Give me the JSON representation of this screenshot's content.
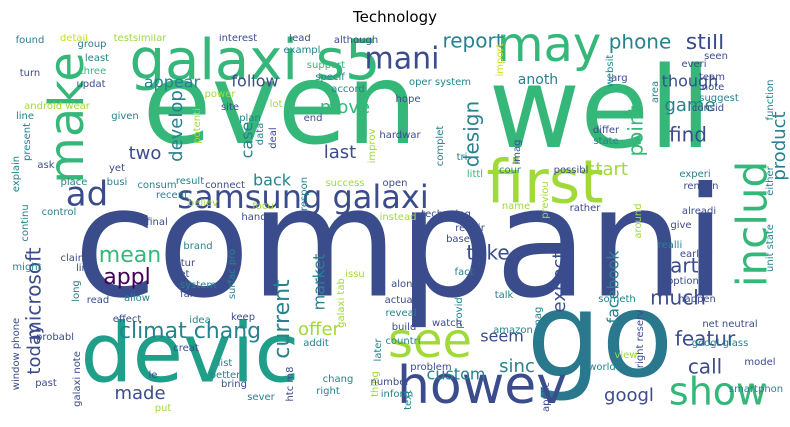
{
  "title": "Technology",
  "palette": {
    "navy": "#3b4c8c",
    "blue": "#3d5d92",
    "teal": "#26828e",
    "teal_dark": "#2a788e",
    "green": "#35b779",
    "green_light": "#5ec962",
    "lime": "#a0da39",
    "yellow_green": "#c8e020",
    "purple": "#472d7b",
    "dark_purple": "#440154",
    "sea": "#1f9e89"
  },
  "words": [
    {
      "text": "compani",
      "color": "navy"
    },
    {
      "text": "even",
      "color": "green"
    },
    {
      "text": "well",
      "color": "green"
    },
    {
      "text": "go",
      "color": "teal_dark"
    },
    {
      "text": "devic",
      "color": "sea"
    },
    {
      "text": "first",
      "color": "lime"
    },
    {
      "text": "galaxi s5",
      "color": "green"
    },
    {
      "text": "howev",
      "color": "navy"
    },
    {
      "text": "make",
      "color": "green"
    },
    {
      "text": "may",
      "color": "green"
    },
    {
      "text": "see",
      "color": "lime"
    },
    {
      "text": "samsung galaxi",
      "color": "navy"
    },
    {
      "text": "show",
      "color": "green"
    },
    {
      "text": "includ",
      "color": "green"
    },
    {
      "text": "mani",
      "color": "navy"
    },
    {
      "text": "ad",
      "color": "navy"
    },
    {
      "text": "report",
      "color": "teal"
    },
    {
      "text": "phone",
      "color": "teal"
    },
    {
      "text": "still",
      "color": "navy"
    },
    {
      "text": "move",
      "color": "green"
    },
    {
      "text": "microsoft",
      "color": "navy"
    },
    {
      "text": "develop",
      "color": "teal"
    },
    {
      "text": "design",
      "color": "teal"
    },
    {
      "text": "point",
      "color": "green"
    },
    {
      "text": "product",
      "color": "teal"
    },
    {
      "text": "game",
      "color": "teal"
    },
    {
      "text": "find",
      "color": "navy"
    },
    {
      "text": "start",
      "color": "lime"
    },
    {
      "text": "appear",
      "color": "teal"
    },
    {
      "text": "follow",
      "color": "navy"
    },
    {
      "text": "anoth",
      "color": "teal"
    },
    {
      "text": "though",
      "color": "navy"
    },
    {
      "text": "two",
      "color": "navy"
    },
    {
      "text": "last",
      "color": "navy"
    },
    {
      "text": "case",
      "color": "teal"
    },
    {
      "text": "back",
      "color": "teal"
    },
    {
      "text": "mean",
      "color": "green"
    },
    {
      "text": "appl",
      "color": "dark_purple"
    },
    {
      "text": "take",
      "color": "navy"
    },
    {
      "text": "part",
      "color": "navy"
    },
    {
      "text": "today",
      "color": "navy"
    },
    {
      "text": "climat chang",
      "color": "teal"
    },
    {
      "text": "current",
      "color": "teal"
    },
    {
      "text": "offer",
      "color": "lime"
    },
    {
      "text": "market",
      "color": "teal"
    },
    {
      "text": "expect",
      "color": "navy"
    },
    {
      "text": "much",
      "color": "navy"
    },
    {
      "text": "featur",
      "color": "navy"
    },
    {
      "text": "facebook",
      "color": "teal"
    },
    {
      "text": "call",
      "color": "navy"
    },
    {
      "text": "seem",
      "color": "navy"
    },
    {
      "text": "sinc",
      "color": "teal"
    },
    {
      "text": "custom",
      "color": "teal"
    },
    {
      "text": "made",
      "color": "navy"
    },
    {
      "text": "googl",
      "color": "navy"
    },
    {
      "text": "found",
      "color": "teal"
    },
    {
      "text": "detail",
      "color": "yellow_green"
    },
    {
      "text": "testsimilar",
      "color": "lime"
    },
    {
      "text": "interest",
      "color": "navy"
    },
    {
      "text": "lead",
      "color": "navy"
    },
    {
      "text": "although",
      "color": "navy"
    },
    {
      "text": "exampl",
      "color": "teal"
    },
    {
      "text": "support",
      "color": "green"
    },
    {
      "text": "specif",
      "color": "teal"
    },
    {
      "text": "accord",
      "color": "teal"
    },
    {
      "text": "import",
      "color": "yellow_green"
    },
    {
      "text": "oper system",
      "color": "teal"
    },
    {
      "text": "larg",
      "color": "navy"
    },
    {
      "text": "everi",
      "color": "navy"
    },
    {
      "text": "seen",
      "color": "navy"
    },
    {
      "text": "team",
      "color": "navy"
    },
    {
      "text": "note",
      "color": "navy"
    },
    {
      "text": "group",
      "color": "teal"
    },
    {
      "text": "least",
      "color": "teal"
    },
    {
      "text": "three",
      "color": "green"
    },
    {
      "text": "turn",
      "color": "navy"
    },
    {
      "text": "updat",
      "color": "navy"
    },
    {
      "text": "android wear",
      "color": "lime"
    },
    {
      "text": "power",
      "color": "lime"
    },
    {
      "text": "site",
      "color": "navy"
    },
    {
      "text": "lot",
      "color": "lime"
    },
    {
      "text": "hope",
      "color": "navy"
    },
    {
      "text": "websit",
      "color": "teal"
    },
    {
      "text": "area",
      "color": "teal"
    },
    {
      "text": "line",
      "color": "teal"
    },
    {
      "text": "given",
      "color": "teal"
    },
    {
      "text": "potenti",
      "color": "lime"
    },
    {
      "text": "plan",
      "color": "teal"
    },
    {
      "text": "end",
      "color": "navy"
    },
    {
      "text": "improv",
      "color": "lime"
    },
    {
      "text": "suggest",
      "color": "teal"
    },
    {
      "text": "consid",
      "color": "navy"
    },
    {
      "text": "function",
      "color": "teal"
    },
    {
      "text": "present",
      "color": "teal"
    },
    {
      "text": "data",
      "color": "teal"
    },
    {
      "text": "deal",
      "color": "navy"
    },
    {
      "text": "hardwar",
      "color": "navy"
    },
    {
      "text": "complet",
      "color": "teal"
    },
    {
      "text": "differ",
      "color": "navy"
    },
    {
      "text": "state",
      "color": "teal"
    },
    {
      "text": "littl",
      "color": "green"
    },
    {
      "text": "imag",
      "color": "navy"
    },
    {
      "text": "cour",
      "color": "teal"
    },
    {
      "text": "explain",
      "color": "teal"
    },
    {
      "text": "result",
      "color": "teal"
    },
    {
      "text": "connect",
      "color": "navy"
    },
    {
      "text": "success",
      "color": "lime"
    },
    {
      "text": "open",
      "color": "navy"
    },
    {
      "text": "tri",
      "color": "teal"
    },
    {
      "text": "possibl",
      "color": "navy"
    },
    {
      "text": "experi",
      "color": "teal"
    },
    {
      "text": "remain",
      "color": "navy"
    },
    {
      "text": "either",
      "color": "teal"
    },
    {
      "text": "ask",
      "color": "navy"
    },
    {
      "text": "yet",
      "color": "navy"
    },
    {
      "text": "consum",
      "color": "teal"
    },
    {
      "text": "place",
      "color": "teal"
    },
    {
      "text": "busi",
      "color": "teal"
    },
    {
      "text": "recent",
      "color": "teal"
    },
    {
      "text": "believ",
      "color": "lime"
    },
    {
      "text": "focu",
      "color": "lime"
    },
    {
      "text": "respon",
      "color": "teal"
    },
    {
      "text": "instead",
      "color": "lime"
    },
    {
      "text": "technolog",
      "color": "navy"
    },
    {
      "text": "previou",
      "color": "lime"
    },
    {
      "text": "rather",
      "color": "navy"
    },
    {
      "text": "alreadi",
      "color": "navy"
    },
    {
      "text": "unit state",
      "color": "teal"
    },
    {
      "text": "control",
      "color": "teal"
    },
    {
      "text": "continu",
      "color": "teal"
    },
    {
      "text": "final",
      "color": "navy"
    },
    {
      "text": "hand",
      "color": "navy"
    },
    {
      "text": "requir",
      "color": "navy"
    },
    {
      "text": "name",
      "color": "lime"
    },
    {
      "text": "base",
      "color": "navy"
    },
    {
      "text": "fact",
      "color": "teal"
    },
    {
      "text": "around",
      "color": "lime"
    },
    {
      "text": "give",
      "color": "navy"
    },
    {
      "text": "realli",
      "color": "teal"
    },
    {
      "text": "earlier",
      "color": "navy"
    },
    {
      "text": "might",
      "color": "teal"
    },
    {
      "text": "brand",
      "color": "teal"
    },
    {
      "text": "futur",
      "color": "navy"
    },
    {
      "text": "let",
      "color": "navy"
    },
    {
      "text": "system",
      "color": "teal"
    },
    {
      "text": "surfac pro",
      "color": "teal"
    },
    {
      "text": "galaxi tab",
      "color": "lime"
    },
    {
      "text": "issu",
      "color": "lime"
    },
    {
      "text": "along",
      "color": "navy"
    },
    {
      "text": "actual",
      "color": "navy"
    },
    {
      "text": "reveal",
      "color": "teal"
    },
    {
      "text": "build",
      "color": "navy"
    },
    {
      "text": "provid",
      "color": "teal"
    },
    {
      "text": "talk",
      "color": "teal"
    },
    {
      "text": "someth",
      "color": "teal"
    },
    {
      "text": "option",
      "color": "navy"
    },
    {
      "text": "happen",
      "color": "navy"
    },
    {
      "text": "right reserv",
      "color": "navy"
    },
    {
      "text": "window phone",
      "color": "navy"
    },
    {
      "text": "claim",
      "color": "navy"
    },
    {
      "text": "limit",
      "color": "navy"
    },
    {
      "text": "long",
      "color": "teal"
    },
    {
      "text": "read",
      "color": "navy"
    },
    {
      "text": "allow",
      "color": "teal"
    },
    {
      "text": "far",
      "color": "navy"
    },
    {
      "text": "effect",
      "color": "navy"
    },
    {
      "text": "idea",
      "color": "teal"
    },
    {
      "text": "keep",
      "color": "navy"
    },
    {
      "text": "watch",
      "color": "navy"
    },
    {
      "text": "countri",
      "color": "teal"
    },
    {
      "text": "amazon",
      "color": "teal"
    },
    {
      "text": "manag",
      "color": "teal"
    },
    {
      "text": "net neutral",
      "color": "navy"
    },
    {
      "text": "probabl",
      "color": "navy"
    },
    {
      "text": "creat",
      "color": "navy"
    },
    {
      "text": "addit",
      "color": "teal"
    },
    {
      "text": "later",
      "color": "teal"
    },
    {
      "text": "googl glass",
      "color": "teal"
    },
    {
      "text": "galaxi note",
      "color": "navy"
    },
    {
      "text": "list",
      "color": "teal"
    },
    {
      "text": "better",
      "color": "teal"
    },
    {
      "text": "le",
      "color": "navy"
    },
    {
      "text": "bring",
      "color": "navy"
    },
    {
      "text": "sever",
      "color": "teal"
    },
    {
      "text": "htc m8",
      "color": "navy"
    },
    {
      "text": "chang",
      "color": "teal"
    },
    {
      "text": "right",
      "color": "teal"
    },
    {
      "text": "thing",
      "color": "lime"
    },
    {
      "text": "number",
      "color": "navy"
    },
    {
      "text": "text",
      "color": "teal"
    },
    {
      "text": "inform",
      "color": "teal"
    },
    {
      "text": "problem",
      "color": "navy"
    },
    {
      "text": "applic",
      "color": "navy"
    },
    {
      "text": "world",
      "color": "teal"
    },
    {
      "text": "view",
      "color": "lime"
    },
    {
      "text": "model",
      "color": "navy"
    },
    {
      "text": "smartphon",
      "color": "teal"
    },
    {
      "text": "past",
      "color": "navy"
    },
    {
      "text": "put",
      "color": "lime"
    }
  ]
}
